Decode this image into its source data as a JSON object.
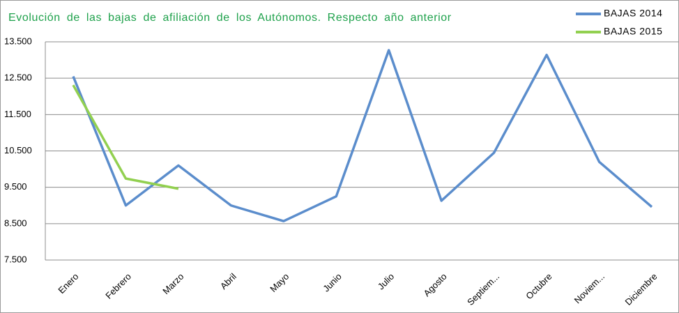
{
  "chart_data": {
    "type": "line",
    "title": "Evolución de las bajas de afiliación de los Autónomos. Respecto año anterior",
    "categories": [
      "Enero",
      "Febrero",
      "Marzo",
      "Abril",
      "Mayo",
      "Junio",
      "Julio",
      "Agosto",
      "Septiem...",
      "Octubre",
      "Noviem...",
      "Diciembre"
    ],
    "series": [
      {
        "name": "BAJAS  2014",
        "color": "#5b8dcc",
        "values": [
          12550,
          9000,
          10100,
          9000,
          8570,
          9250,
          13270,
          9130,
          10450,
          13140,
          10200,
          8960
        ]
      },
      {
        "name": "BAJAS  2015",
        "color": "#92d050",
        "values": [
          12310,
          9740,
          9460,
          null,
          null,
          null,
          null,
          null,
          null,
          null,
          null,
          null
        ]
      }
    ],
    "ylim": [
      7500,
      13500
    ],
    "yticks": [
      {
        "value": 7500,
        "label": "7.500"
      },
      {
        "value": 8500,
        "label": "8.500"
      },
      {
        "value": 9500,
        "label": "9.500"
      },
      {
        "value": 10500,
        "label": "10.500"
      },
      {
        "value": 11500,
        "label": "11.500"
      },
      {
        "value": 12500,
        "label": "12.500"
      },
      {
        "value": 13500,
        "label": "13.500"
      }
    ],
    "grid": true,
    "legend": "top-right"
  }
}
